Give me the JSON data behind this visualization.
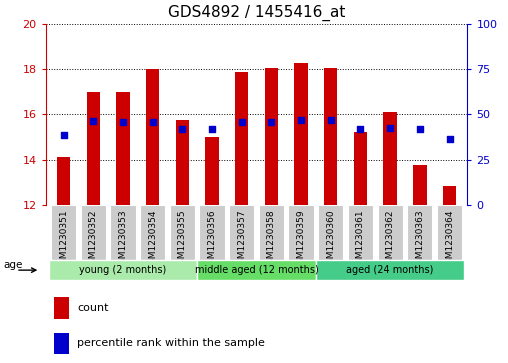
{
  "title": "GDS4892 / 1455416_at",
  "samples": [
    "GSM1230351",
    "GSM1230352",
    "GSM1230353",
    "GSM1230354",
    "GSM1230355",
    "GSM1230356",
    "GSM1230357",
    "GSM1230358",
    "GSM1230359",
    "GSM1230360",
    "GSM1230361",
    "GSM1230362",
    "GSM1230363",
    "GSM1230364"
  ],
  "bar_bottom": 12,
  "bar_tops": [
    14.1,
    17.0,
    17.0,
    18.0,
    15.75,
    15.0,
    17.85,
    18.05,
    18.25,
    18.05,
    15.2,
    16.1,
    13.75,
    12.85
  ],
  "percentile_values": [
    15.1,
    15.7,
    15.65,
    15.65,
    15.35,
    15.35,
    15.65,
    15.65,
    15.75,
    15.75,
    15.35,
    15.4,
    15.35,
    14.9
  ],
  "ylim_left": [
    12,
    20
  ],
  "ylim_right": [
    0,
    100
  ],
  "yticks_left": [
    12,
    14,
    16,
    18,
    20
  ],
  "yticks_right": [
    0,
    25,
    50,
    75,
    100
  ],
  "bar_color": "#cc0000",
  "dot_color": "#0000cc",
  "groups": [
    {
      "label": "young (2 months)",
      "start": 0,
      "end": 4,
      "color": "#aaeaaa"
    },
    {
      "label": "middle aged (12 months)",
      "start": 5,
      "end": 8,
      "color": "#66cc66"
    },
    {
      "label": "aged (24 months)",
      "start": 9,
      "end": 13,
      "color": "#44cc88"
    }
  ],
  "background_color": "#ffffff",
  "age_label": "age",
  "legend_count_label": "count",
  "legend_percentile_label": "percentile rank within the sample",
  "grid_color": "#000000",
  "title_fontsize": 11,
  "tick_fontsize": 8,
  "axis_color_left": "#cc0000",
  "axis_color_right": "#0000cc",
  "sample_box_color": "#cccccc",
  "bar_width": 0.45
}
